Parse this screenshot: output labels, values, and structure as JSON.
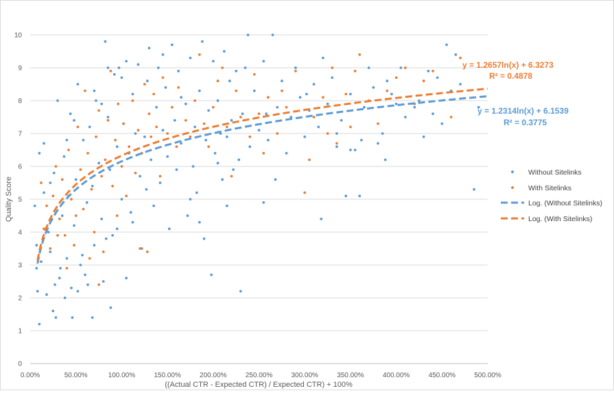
{
  "chart_data": {
    "type": "scatter",
    "title": "",
    "xlabel": "((Actual CTR - Expected CTR) / Expected CTR) + 100%",
    "ylabel": "Quality Score",
    "xlim": [
      0,
      5
    ],
    "ylim": [
      0,
      10
    ],
    "x_ticks": [
      "0.00%",
      "50.00%",
      "100.00%",
      "150.00%",
      "200.00%",
      "250.00%",
      "300.00%",
      "350.00%",
      "400.00%",
      "450.00%",
      "500.00%"
    ],
    "y_ticks": [
      "0",
      "1",
      "2",
      "3",
      "4",
      "5",
      "6",
      "7",
      "8",
      "9",
      "10"
    ],
    "grid": "horizontal",
    "legend_position": "right",
    "series": [
      {
        "name": "Without Sitelinks",
        "kind": "scatter",
        "color": "#5b9bd5",
        "points": [
          [
            0.05,
            4.8
          ],
          [
            0.07,
            2.9
          ],
          [
            0.07,
            3.6
          ],
          [
            0.08,
            2.2
          ],
          [
            0.1,
            6.4
          ],
          [
            0.1,
            1.2
          ],
          [
            0.12,
            3.1
          ],
          [
            0.15,
            5.2
          ],
          [
            0.18,
            2.1
          ],
          [
            0.2,
            4.0
          ],
          [
            0.22,
            3.4
          ],
          [
            0.25,
            1.6
          ],
          [
            0.26,
            5.8
          ],
          [
            0.28,
            1.4
          ],
          [
            0.3,
            8.0
          ],
          [
            0.32,
            2.6
          ],
          [
            0.35,
            4.5
          ],
          [
            0.37,
            6.3
          ],
          [
            0.38,
            2.0
          ],
          [
            0.4,
            3.2
          ],
          [
            0.42,
            5.1
          ],
          [
            0.44,
            7.6
          ],
          [
            0.45,
            2.3
          ],
          [
            0.46,
            1.4
          ],
          [
            0.48,
            4.2
          ],
          [
            0.5,
            5.6
          ],
          [
            0.52,
            8.5
          ],
          [
            0.55,
            3.0
          ],
          [
            0.58,
            6.8
          ],
          [
            0.6,
            2.7
          ],
          [
            0.62,
            4.9
          ],
          [
            0.65,
            7.2
          ],
          [
            0.68,
            5.4
          ],
          [
            0.7,
            3.6
          ],
          [
            0.72,
            8.0
          ],
          [
            0.75,
            6.1
          ],
          [
            0.78,
            4.4
          ],
          [
            0.8,
            2.5
          ],
          [
            0.82,
            9.8
          ],
          [
            0.85,
            7.5
          ],
          [
            0.87,
            5.9
          ],
          [
            0.88,
            1.7
          ],
          [
            0.9,
            3.9
          ],
          [
            0.92,
            8.8
          ],
          [
            0.95,
            6.6
          ],
          [
            0.97,
            9.0
          ],
          [
            1.0,
            5.0
          ],
          [
            1.02,
            7.3
          ],
          [
            1.05,
            2.6
          ],
          [
            1.08,
            6.4
          ],
          [
            1.1,
            4.6
          ],
          [
            1.12,
            8.2
          ],
          [
            1.15,
            7.0
          ],
          [
            1.18,
            9.1
          ],
          [
            1.2,
            5.7
          ],
          [
            1.22,
            3.5
          ],
          [
            1.25,
            6.9
          ],
          [
            1.28,
            8.6
          ],
          [
            1.3,
            9.6
          ],
          [
            1.32,
            6.2
          ],
          [
            1.35,
            4.8
          ],
          [
            1.38,
            7.8
          ],
          [
            1.4,
            9.0
          ],
          [
            1.42,
            5.5
          ],
          [
            1.45,
            7.1
          ],
          [
            1.48,
            8.4
          ],
          [
            1.5,
            6.3
          ],
          [
            1.52,
            4.1
          ],
          [
            1.55,
            9.7
          ],
          [
            1.58,
            7.4
          ],
          [
            1.6,
            5.9
          ],
          [
            1.62,
            8.9
          ],
          [
            1.65,
            6.7
          ],
          [
            1.7,
            7.9
          ],
          [
            1.72,
            4.5
          ],
          [
            1.75,
            9.3
          ],
          [
            1.78,
            6.0
          ],
          [
            1.8,
            7.2
          ],
          [
            1.82,
            5.2
          ],
          [
            1.85,
            8.3
          ],
          [
            1.88,
            9.8
          ],
          [
            1.9,
            3.8
          ],
          [
            1.92,
            6.8
          ],
          [
            1.95,
            7.7
          ],
          [
            1.98,
            2.7
          ],
          [
            2.0,
            9.2
          ],
          [
            2.02,
            6.4
          ],
          [
            2.05,
            8.0
          ],
          [
            2.08,
            7.0
          ],
          [
            2.1,
            5.6
          ],
          [
            2.12,
            9.5
          ],
          [
            2.15,
            6.9
          ],
          [
            2.18,
            8.6
          ],
          [
            2.2,
            7.4
          ],
          [
            2.22,
            5.9
          ],
          [
            2.25,
            8.9
          ],
          [
            2.28,
            6.2
          ],
          [
            2.3,
            2.2
          ],
          [
            2.32,
            7.6
          ],
          [
            2.35,
            9.0
          ],
          [
            2.38,
            10.0
          ],
          [
            2.4,
            6.6
          ],
          [
            2.45,
            8.3
          ],
          [
            2.5,
            7.1
          ],
          [
            2.55,
            9.2
          ],
          [
            2.6,
            6.8
          ],
          [
            2.65,
            10.0
          ],
          [
            2.7,
            7.8
          ],
          [
            2.75,
            8.6
          ],
          [
            2.8,
            6.4
          ],
          [
            2.85,
            7.5
          ],
          [
            2.9,
            9.0
          ],
          [
            2.95,
            8.1
          ],
          [
            3.0,
            6.9
          ],
          [
            3.05,
            7.7
          ],
          [
            3.1,
            8.5
          ],
          [
            3.15,
            7.2
          ],
          [
            3.18,
            4.4
          ],
          [
            3.2,
            9.3
          ],
          [
            3.25,
            7.9
          ],
          [
            3.3,
            8.7
          ],
          [
            3.35,
            6.6
          ],
          [
            3.4,
            7.4
          ],
          [
            3.45,
            5.1
          ],
          [
            3.5,
            8.2
          ],
          [
            3.55,
            6.5
          ],
          [
            3.6,
            5.1
          ],
          [
            3.65,
            7.8
          ],
          [
            3.7,
            9.0
          ],
          [
            3.75,
            8.4
          ],
          [
            3.8,
            6.7
          ],
          [
            3.85,
            7.0
          ],
          [
            3.9,
            8.6
          ],
          [
            4.0,
            7.9
          ],
          [
            4.05,
            9.0
          ],
          [
            4.1,
            7.5
          ],
          [
            4.2,
            7.8
          ],
          [
            4.3,
            6.9
          ],
          [
            4.35,
            8.9
          ],
          [
            4.4,
            7.6
          ],
          [
            4.5,
            7.3
          ],
          [
            4.55,
            9.7
          ],
          [
            4.6,
            8.3
          ],
          [
            4.65,
            9.4
          ],
          [
            4.85,
            5.3
          ],
          [
            4.7,
            8.5
          ],
          [
            4.9,
            7.8
          ],
          [
            3.95,
            8.2
          ],
          [
            4.25,
            8.0
          ],
          [
            4.45,
            8.7
          ],
          [
            3.35,
            7.0
          ],
          [
            3.02,
            8.2
          ],
          [
            2.58,
            7.6
          ],
          [
            2.05,
            6.1
          ],
          [
            2.68,
            5.6
          ],
          [
            1.12,
            4.3
          ],
          [
            1.27,
            5.3
          ],
          [
            0.95,
            4.1
          ],
          [
            0.83,
            3.8
          ],
          [
            0.63,
            2.4
          ],
          [
            0.57,
            3.3
          ],
          [
            0.52,
            2.2
          ],
          [
            0.33,
            2.9
          ],
          [
            0.27,
            2.4
          ],
          [
            0.22,
            5.5
          ],
          [
            0.15,
            6.7
          ],
          [
            0.48,
            7.4
          ],
          [
            0.4,
            6.8
          ],
          [
            0.7,
            8.3
          ],
          [
            0.85,
            9.0
          ],
          [
            1.05,
            9.2
          ],
          [
            1.45,
            9.4
          ],
          [
            1.65,
            8.1
          ],
          [
            1.75,
            5.0
          ],
          [
            1.85,
            4.3
          ],
          [
            2.15,
            4.8
          ],
          [
            2.55,
            4.9
          ],
          [
            3.5,
            6.5
          ],
          [
            3.62,
            6.8
          ],
          [
            3.88,
            6.2
          ],
          [
            0.68,
            1.4
          ],
          [
            1.0,
            8.7
          ],
          [
            0.78,
            7.9
          ]
        ]
      },
      {
        "name": "With Sitelinks",
        "kind": "scatter",
        "color": "#ed7d31",
        "points": [
          [
            0.12,
            5.5
          ],
          [
            0.15,
            4.1
          ],
          [
            0.18,
            4.8
          ],
          [
            0.22,
            3.5
          ],
          [
            0.25,
            5.1
          ],
          [
            0.28,
            6.0
          ],
          [
            0.32,
            4.4
          ],
          [
            0.35,
            5.6
          ],
          [
            0.38,
            3.9
          ],
          [
            0.42,
            6.5
          ],
          [
            0.45,
            5.0
          ],
          [
            0.48,
            3.6
          ],
          [
            0.52,
            7.2
          ],
          [
            0.55,
            5.9
          ],
          [
            0.58,
            4.7
          ],
          [
            0.6,
            8.3
          ],
          [
            0.63,
            6.4
          ],
          [
            0.67,
            5.3
          ],
          [
            0.7,
            4.0
          ],
          [
            0.72,
            6.9
          ],
          [
            0.75,
            7.7
          ],
          [
            0.78,
            5.7
          ],
          [
            0.8,
            3.4
          ],
          [
            0.82,
            6.2
          ],
          [
            0.85,
            7.4
          ],
          [
            0.88,
            8.9
          ],
          [
            0.9,
            5.4
          ],
          [
            0.93,
            6.8
          ],
          [
            0.96,
            7.9
          ],
          [
            1.0,
            6.0
          ],
          [
            1.02,
            7.3
          ],
          [
            1.05,
            5.1
          ],
          [
            1.08,
            6.6
          ],
          [
            1.12,
            8.0
          ],
          [
            1.15,
            5.8
          ],
          [
            1.18,
            7.1
          ],
          [
            1.22,
            6.4
          ],
          [
            1.25,
            8.5
          ],
          [
            1.28,
            3.4
          ],
          [
            1.3,
            7.6
          ],
          [
            1.32,
            6.9
          ],
          [
            1.35,
            8.2
          ],
          [
            1.38,
            7.2
          ],
          [
            1.42,
            5.7
          ],
          [
            1.45,
            8.7
          ],
          [
            1.5,
            7.0
          ],
          [
            1.55,
            7.8
          ],
          [
            1.6,
            6.6
          ],
          [
            1.62,
            8.4
          ],
          [
            1.7,
            7.4
          ],
          [
            1.75,
            6.9
          ],
          [
            1.8,
            8.0
          ],
          [
            1.85,
            9.4
          ],
          [
            1.9,
            7.3
          ],
          [
            1.95,
            6.6
          ],
          [
            2.0,
            7.8
          ],
          [
            2.05,
            8.6
          ],
          [
            2.1,
            9.0
          ],
          [
            2.15,
            7.2
          ],
          [
            2.2,
            5.7
          ],
          [
            2.25,
            8.3
          ],
          [
            2.3,
            7.5
          ],
          [
            2.4,
            6.9
          ],
          [
            2.45,
            8.8
          ],
          [
            2.5,
            7.6
          ],
          [
            2.55,
            6.4
          ],
          [
            2.6,
            8.1
          ],
          [
            2.7,
            7.0
          ],
          [
            2.75,
            8.3
          ],
          [
            2.8,
            7.8
          ],
          [
            2.9,
            8.9
          ],
          [
            3.0,
            5.2
          ],
          [
            3.05,
            6.2
          ],
          [
            3.1,
            7.5
          ],
          [
            3.2,
            8.1
          ],
          [
            3.25,
            7.0
          ],
          [
            3.3,
            9.0
          ],
          [
            3.35,
            6.7
          ],
          [
            3.45,
            8.2
          ],
          [
            3.5,
            7.2
          ],
          [
            3.55,
            8.9
          ],
          [
            3.6,
            9.4
          ],
          [
            3.7,
            8.0
          ],
          [
            3.8,
            7.3
          ],
          [
            3.9,
            8.3
          ],
          [
            4.0,
            8.7
          ],
          [
            4.1,
            9.0
          ],
          [
            4.2,
            7.9
          ],
          [
            4.3,
            8.6
          ],
          [
            4.4,
            8.9
          ],
          [
            4.6,
            7.5
          ],
          [
            4.7,
            9.3
          ],
          [
            0.3,
            3.9
          ],
          [
            0.4,
            2.9
          ],
          [
            0.5,
            4.5
          ],
          [
            0.65,
            3.2
          ],
          [
            0.95,
            4.5
          ],
          [
            1.2,
            3.5
          ],
          [
            0.75,
            2.4
          ]
        ]
      },
      {
        "name": "Log. (Without Sitelinks)",
        "kind": "trendline",
        "color": "#5b9bd5",
        "equation": "y = 1.2314ln(x) + 6.1539",
        "r2": "R² = 0.3775",
        "a": 1.2314,
        "b": 6.1539
      },
      {
        "name": "Log. (With Sitelinks)",
        "kind": "trendline",
        "color": "#ed7d31",
        "equation": "y = 1.2657ln(x) + 6.3273",
        "r2": "R² = 0.4878",
        "a": 1.2657,
        "b": 6.3273
      }
    ]
  }
}
